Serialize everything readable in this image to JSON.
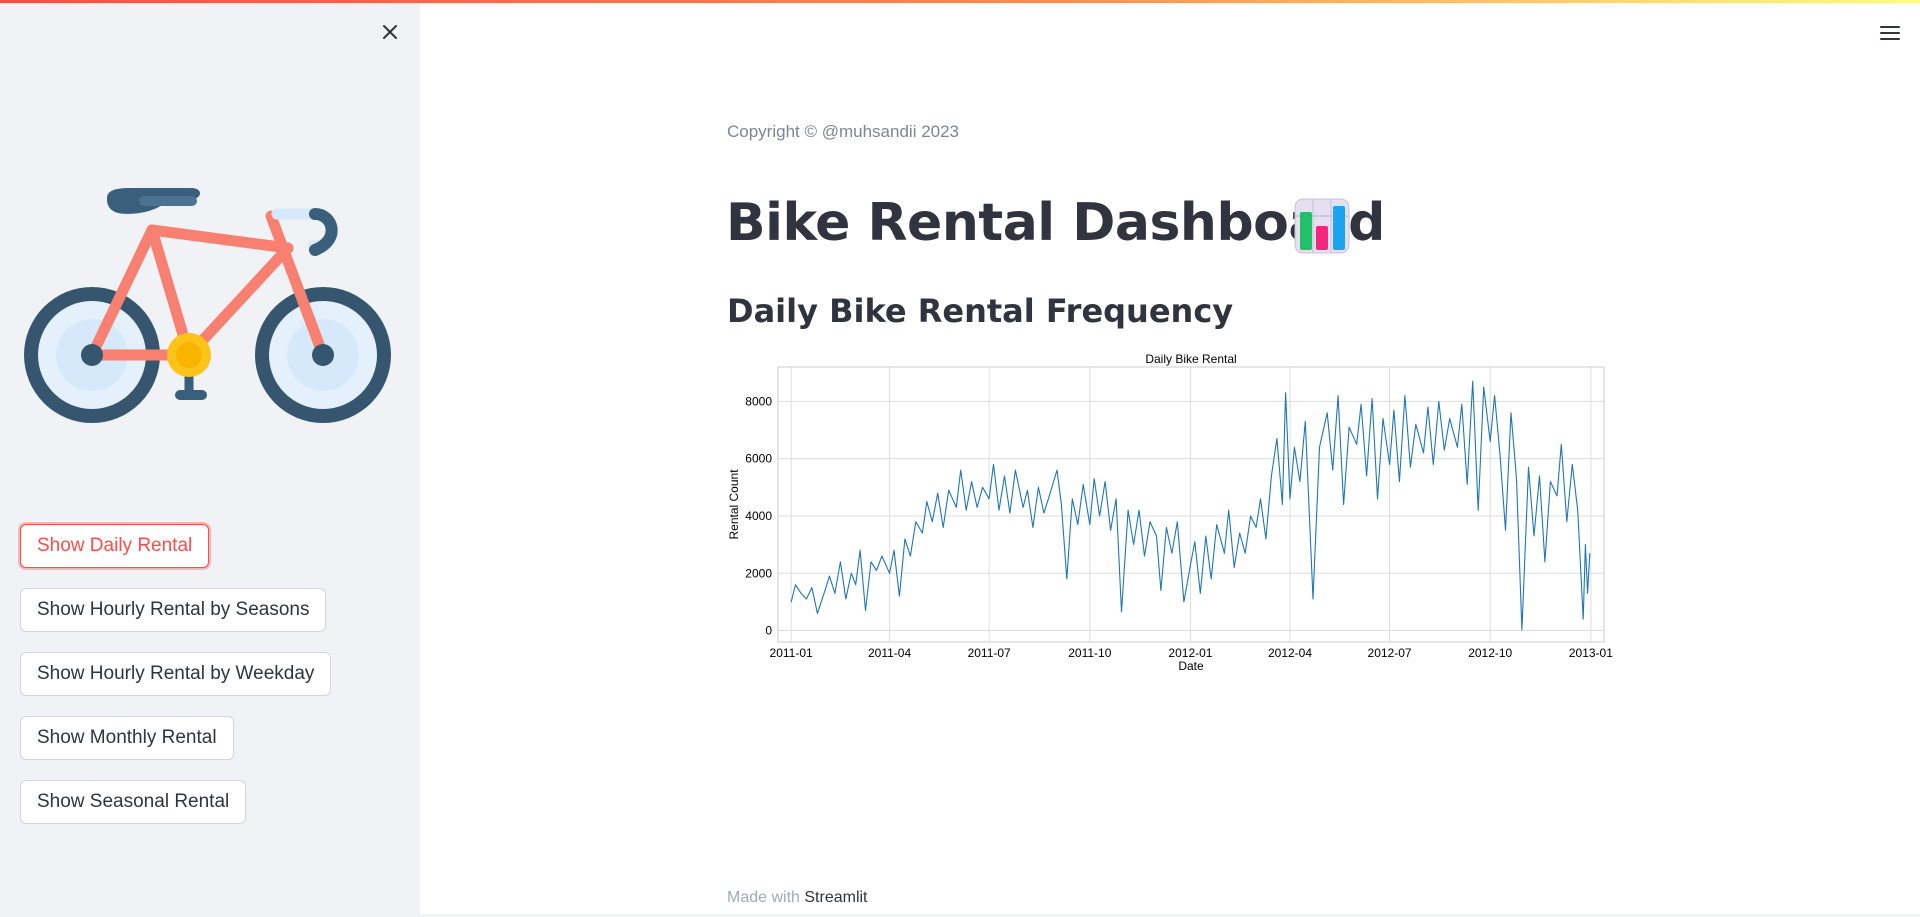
{
  "sidebar": {
    "buttons": [
      {
        "label": "Show Daily Rental",
        "active": true
      },
      {
        "label": "Show Hourly Rental by Seasons",
        "active": false
      },
      {
        "label": "Show Hourly Rental by Weekday",
        "active": false
      },
      {
        "label": "Show Monthly Rental",
        "active": false
      },
      {
        "label": "Show Seasonal Rental",
        "active": false
      }
    ],
    "close_icon": "close-icon",
    "logo_icon": "bicycle-icon"
  },
  "header": {
    "menu_icon": "hamburger-menu-icon"
  },
  "main": {
    "copyright": "Copyright © @muhsandii 2023",
    "title": "Bike Rental Dashboard",
    "title_icon": "bar-chart-emoji-icon",
    "subtitle": "Daily Bike Rental Frequency"
  },
  "footer": {
    "prefix": "Made with ",
    "brand": "Streamlit"
  },
  "colors": {
    "accent": "#ff4b4b",
    "line": "#1f77b4",
    "sidebar_bg": "#f0f2f6",
    "text": "#31333f"
  },
  "chart_data": {
    "type": "line",
    "title": "Daily Bike Rental",
    "xlabel": "Date",
    "ylabel": "Rental Count",
    "xlim": [
      "2010-12-20",
      "2013-01-13"
    ],
    "ylim": [
      -400,
      9200
    ],
    "x_ticks": [
      "2011-01",
      "2011-04",
      "2011-07",
      "2011-10",
      "2012-01",
      "2012-04",
      "2012-07",
      "2012-10",
      "2013-01"
    ],
    "y_ticks": [
      0,
      2000,
      4000,
      6000,
      8000
    ],
    "grid": true,
    "legend": "none",
    "series": [
      {
        "color": "#1f77b4",
        "points": [
          [
            "2011-01-01",
            985
          ],
          [
            "2011-01-05",
            1600
          ],
          [
            "2011-01-10",
            1300
          ],
          [
            "2011-01-15",
            1100
          ],
          [
            "2011-01-20",
            1500
          ],
          [
            "2011-01-25",
            600
          ],
          [
            "2011-02-01",
            1400
          ],
          [
            "2011-02-05",
            1900
          ],
          [
            "2011-02-10",
            1300
          ],
          [
            "2011-02-15",
            2400
          ],
          [
            "2011-02-20",
            1100
          ],
          [
            "2011-02-25",
            2000
          ],
          [
            "2011-03-01",
            1600
          ],
          [
            "2011-03-05",
            2800
          ],
          [
            "2011-03-10",
            700
          ],
          [
            "2011-03-15",
            2400
          ],
          [
            "2011-03-20",
            2100
          ],
          [
            "2011-03-25",
            2600
          ],
          [
            "2011-04-01",
            2000
          ],
          [
            "2011-04-05",
            2800
          ],
          [
            "2011-04-10",
            1200
          ],
          [
            "2011-04-15",
            3200
          ],
          [
            "2011-04-20",
            2600
          ],
          [
            "2011-04-25",
            3800
          ],
          [
            "2011-05-01",
            3400
          ],
          [
            "2011-05-05",
            4500
          ],
          [
            "2011-05-10",
            3800
          ],
          [
            "2011-05-15",
            4800
          ],
          [
            "2011-05-20",
            3600
          ],
          [
            "2011-05-25",
            4900
          ],
          [
            "2011-06-01",
            4300
          ],
          [
            "2011-06-05",
            5600
          ],
          [
            "2011-06-10",
            4200
          ],
          [
            "2011-06-15",
            5200
          ],
          [
            "2011-06-20",
            4300
          ],
          [
            "2011-06-25",
            5000
          ],
          [
            "2011-07-01",
            4600
          ],
          [
            "2011-07-05",
            5800
          ],
          [
            "2011-07-10",
            4200
          ],
          [
            "2011-07-15",
            5400
          ],
          [
            "2011-07-20",
            4100
          ],
          [
            "2011-07-25",
            5600
          ],
          [
            "2011-08-01",
            4300
          ],
          [
            "2011-08-05",
            4900
          ],
          [
            "2011-08-10",
            3600
          ],
          [
            "2011-08-15",
            5000
          ],
          [
            "2011-08-20",
            4100
          ],
          [
            "2011-08-25",
            4700
          ],
          [
            "2011-09-01",
            5600
          ],
          [
            "2011-09-05",
            4400
          ],
          [
            "2011-09-10",
            1800
          ],
          [
            "2011-09-15",
            4600
          ],
          [
            "2011-09-20",
            3700
          ],
          [
            "2011-09-25",
            5100
          ],
          [
            "2011-10-01",
            3700
          ],
          [
            "2011-10-05",
            5300
          ],
          [
            "2011-10-10",
            4000
          ],
          [
            "2011-10-15",
            5200
          ],
          [
            "2011-10-20",
            3500
          ],
          [
            "2011-10-25",
            4600
          ],
          [
            "2011-10-30",
            650
          ],
          [
            "2011-11-05",
            4200
          ],
          [
            "2011-11-10",
            3000
          ],
          [
            "2011-11-15",
            4200
          ],
          [
            "2011-11-20",
            2600
          ],
          [
            "2011-11-25",
            3800
          ],
          [
            "2011-12-01",
            3300
          ],
          [
            "2011-12-05",
            1400
          ],
          [
            "2011-12-10",
            3600
          ],
          [
            "2011-12-15",
            2700
          ],
          [
            "2011-12-20",
            3800
          ],
          [
            "2011-12-26",
            1000
          ],
          [
            "2012-01-01",
            2300
          ],
          [
            "2012-01-05",
            3100
          ],
          [
            "2012-01-10",
            1300
          ],
          [
            "2012-01-15",
            3300
          ],
          [
            "2012-01-20",
            1800
          ],
          [
            "2012-01-25",
            3700
          ],
          [
            "2012-02-01",
            2700
          ],
          [
            "2012-02-05",
            4200
          ],
          [
            "2012-02-10",
            2200
          ],
          [
            "2012-02-15",
            3400
          ],
          [
            "2012-02-20",
            2700
          ],
          [
            "2012-02-25",
            4000
          ],
          [
            "2012-03-01",
            3600
          ],
          [
            "2012-03-05",
            4600
          ],
          [
            "2012-03-10",
            3200
          ],
          [
            "2012-03-15",
            5400
          ],
          [
            "2012-03-20",
            6700
          ],
          [
            "2012-03-25",
            4400
          ],
          [
            "2012-03-28",
            8300
          ],
          [
            "2012-04-01",
            4600
          ],
          [
            "2012-04-05",
            6400
          ],
          [
            "2012-04-10",
            5200
          ],
          [
            "2012-04-15",
            7300
          ],
          [
            "2012-04-22",
            1100
          ],
          [
            "2012-04-28",
            6400
          ],
          [
            "2012-05-05",
            7600
          ],
          [
            "2012-05-10",
            5600
          ],
          [
            "2012-05-15",
            8200
          ],
          [
            "2012-05-20",
            4400
          ],
          [
            "2012-05-25",
            7100
          ],
          [
            "2012-06-01",
            6500
          ],
          [
            "2012-06-05",
            7900
          ],
          [
            "2012-06-10",
            5400
          ],
          [
            "2012-06-15",
            8100
          ],
          [
            "2012-06-20",
            4600
          ],
          [
            "2012-06-25",
            7400
          ],
          [
            "2012-07-01",
            5800
          ],
          [
            "2012-07-05",
            7700
          ],
          [
            "2012-07-10",
            5200
          ],
          [
            "2012-07-15",
            8200
          ],
          [
            "2012-07-20",
            5700
          ],
          [
            "2012-07-25",
            7200
          ],
          [
            "2012-08-01",
            6200
          ],
          [
            "2012-08-05",
            7800
          ],
          [
            "2012-08-10",
            5800
          ],
          [
            "2012-08-15",
            8000
          ],
          [
            "2012-08-20",
            6300
          ],
          [
            "2012-08-25",
            7400
          ],
          [
            "2012-09-01",
            6400
          ],
          [
            "2012-09-05",
            7900
          ],
          [
            "2012-09-10",
            5100
          ],
          [
            "2012-09-15",
            8700
          ],
          [
            "2012-09-20",
            4200
          ],
          [
            "2012-09-25",
            8500
          ],
          [
            "2012-10-01",
            6600
          ],
          [
            "2012-10-05",
            8200
          ],
          [
            "2012-10-10",
            6100
          ],
          [
            "2012-10-15",
            3500
          ],
          [
            "2012-10-20",
            7600
          ],
          [
            "2012-10-25",
            5300
          ],
          [
            "2012-10-30",
            22
          ],
          [
            "2012-11-05",
            5700
          ],
          [
            "2012-11-10",
            3300
          ],
          [
            "2012-11-15",
            5400
          ],
          [
            "2012-11-20",
            2400
          ],
          [
            "2012-11-25",
            5200
          ],
          [
            "2012-12-01",
            4700
          ],
          [
            "2012-12-05",
            6500
          ],
          [
            "2012-12-10",
            3800
          ],
          [
            "2012-12-15",
            5800
          ],
          [
            "2012-12-20",
            4200
          ],
          [
            "2012-12-25",
            400
          ],
          [
            "2012-12-27",
            3000
          ],
          [
            "2012-12-29",
            1300
          ],
          [
            "2012-12-31",
            2700
          ]
        ]
      }
    ]
  }
}
